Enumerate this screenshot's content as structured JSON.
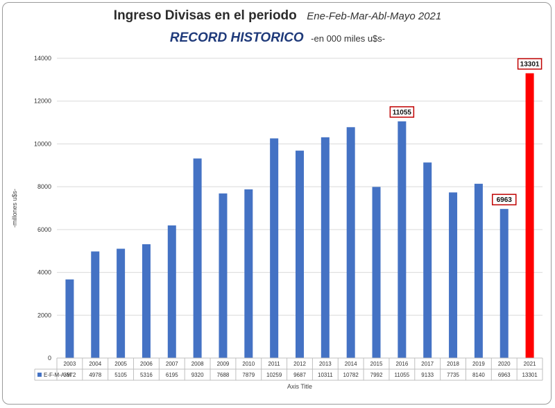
{
  "colors": {
    "bar": "#4472c4",
    "highlight_bar": "#ff0000",
    "callout_border": "#c00000"
  },
  "chart_data": {
    "type": "bar",
    "title": "Ingreso Divisas en el periodo",
    "title_period": "Ene-Feb-Mar-Abl-Mayo 2021",
    "subtitle": "RECORD HISTORICO",
    "subtitle_units": "-en 000  miles u$s-",
    "xlabel": "Axis Title",
    "ylabel": "-millones u$s-",
    "ylim": [
      0,
      14000
    ],
    "yticks": [
      0,
      2000,
      4000,
      6000,
      8000,
      10000,
      12000,
      14000
    ],
    "grid": true,
    "data_table": true,
    "categories": [
      "2003",
      "2004",
      "2005",
      "2006",
      "2007",
      "2008",
      "2009",
      "2010",
      "2011",
      "2012",
      "2013",
      "2014",
      "2015",
      "2016",
      "2017",
      "2018",
      "2019",
      "2020",
      "2021"
    ],
    "series": [
      {
        "name": "E-F-M-A-M",
        "values": [
          3672,
          4978,
          5105,
          5316,
          6195,
          9320,
          7688,
          7879,
          10259,
          9687,
          10311,
          10782,
          7992,
          11055,
          9133,
          7735,
          8140,
          6963,
          13301
        ]
      }
    ],
    "highlight": "2021",
    "callouts": [
      {
        "category": "2016",
        "label": "11055"
      },
      {
        "category": "2020",
        "label": "6963"
      },
      {
        "category": "2021",
        "label": "13301"
      }
    ]
  }
}
